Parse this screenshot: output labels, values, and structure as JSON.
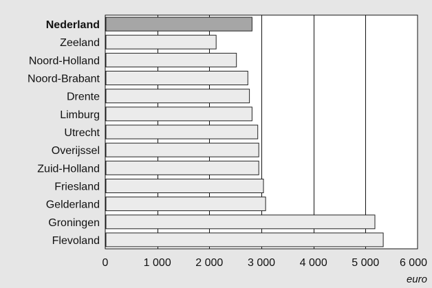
{
  "chart_data": {
    "type": "bar",
    "orientation": "horizontal",
    "categories": [
      "Nederland",
      "Zeeland",
      "Noord-Holland",
      "Noord-Brabant",
      "Drente",
      "Limburg",
      "Utrecht",
      "Overijssel",
      "Zuid-Holland",
      "Friesland",
      "Gelderland",
      "Groningen",
      "Flevoland"
    ],
    "values": [
      2820,
      2130,
      2520,
      2740,
      2770,
      2820,
      2930,
      2950,
      2950,
      3040,
      3080,
      5180,
      5340
    ],
    "highlighted_category": "Nederland",
    "xlabel": "euro",
    "xlim": [
      0,
      6000
    ],
    "x_ticks": [
      0,
      1000,
      2000,
      3000,
      4000,
      5000,
      6000
    ],
    "x_tick_labels": [
      "0",
      "1 000",
      "2 000",
      "3 000",
      "4 000",
      "5 000",
      "6 000"
    ],
    "grid": "vertical lines",
    "colors": {
      "bar": "#ebebeb",
      "highlight_bar": "#a6a6a6",
      "background": "#e6e6e6",
      "plot_area": "#ffffff"
    }
  }
}
